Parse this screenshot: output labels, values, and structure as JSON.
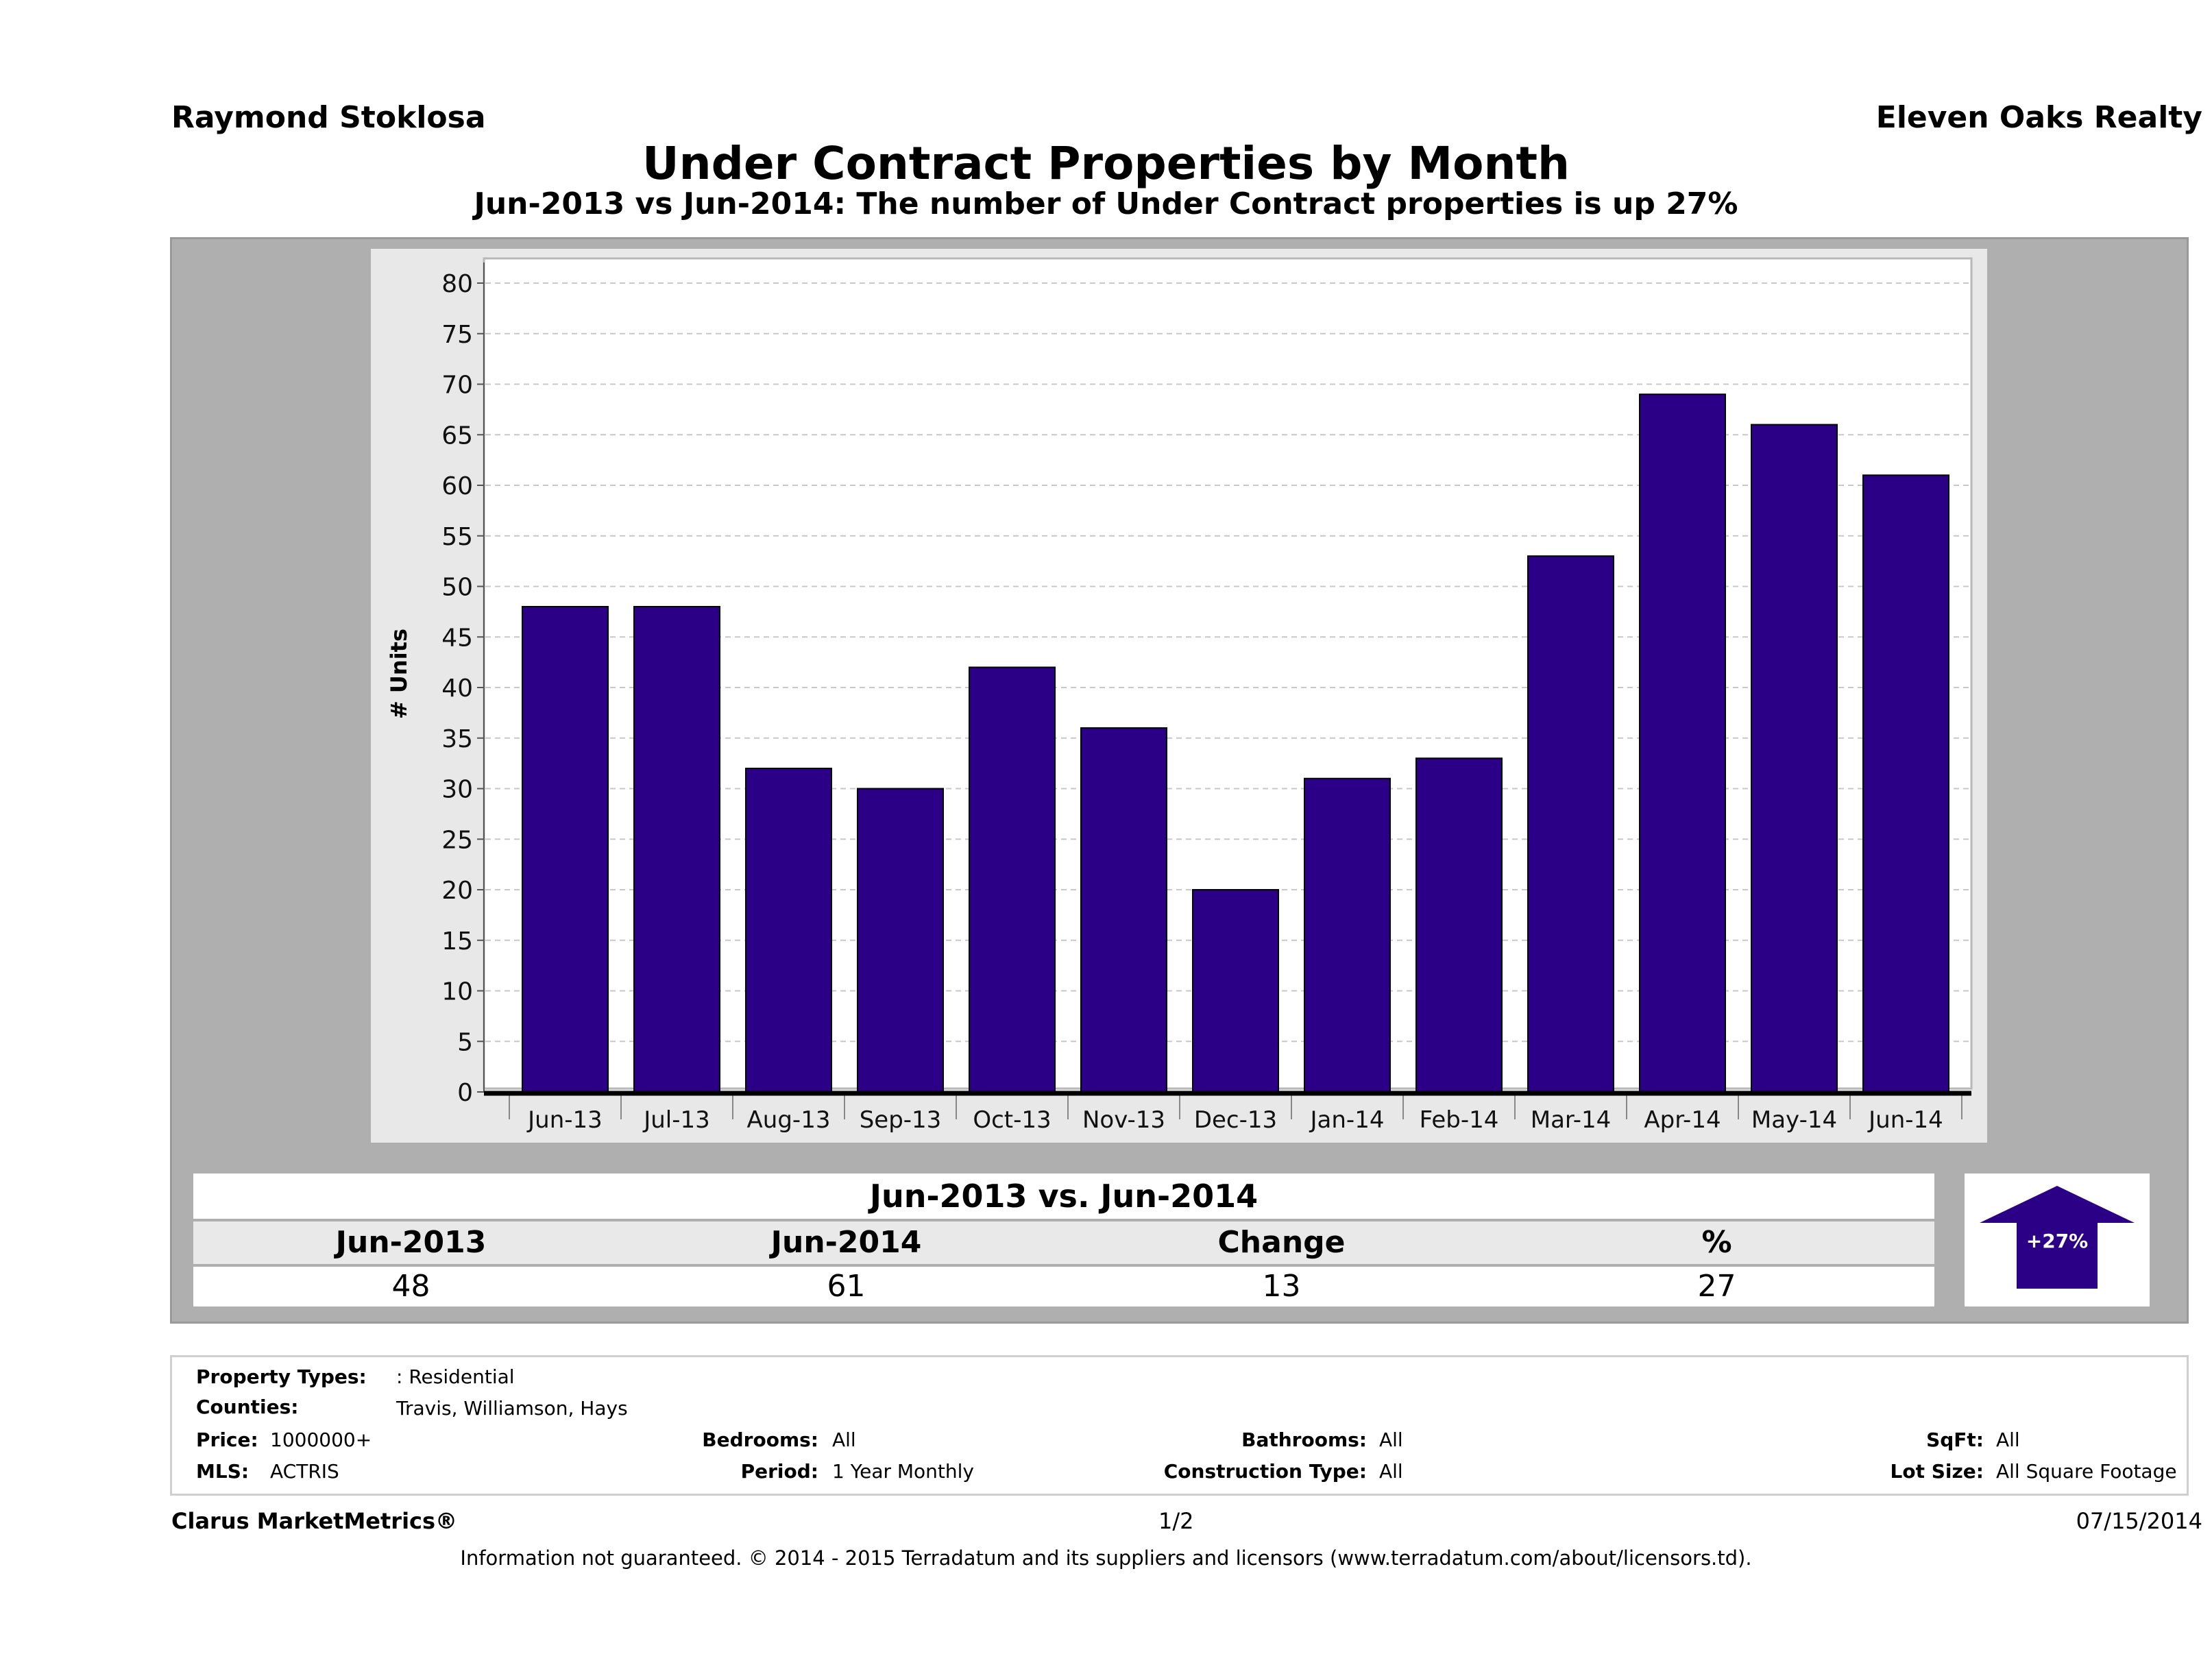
{
  "header": {
    "agent": "Raymond Stoklosa",
    "brokerage": "Eleven Oaks Realty",
    "title": "Under Contract Properties by Month",
    "subtitle": "Jun-2013 vs Jun-2014: The number of Under Contract  properties is up 27%"
  },
  "colors": {
    "bar": "#2b0087",
    "panel": "#afafaf",
    "arrow": "#2b0087"
  },
  "chart_data": {
    "type": "bar",
    "title": "Under Contract Properties by Month",
    "xlabel": "",
    "ylabel": "# Units",
    "ylim": [
      0,
      80
    ],
    "yticks": [
      "0",
      "5",
      "10",
      "15",
      "20",
      "25",
      "30",
      "35",
      "40",
      "45",
      "50",
      "55",
      "60",
      "65",
      "70",
      "75",
      "80"
    ],
    "grid": true,
    "categories": [
      "Jun-13",
      "Jul-13",
      "Aug-13",
      "Sep-13",
      "Oct-13",
      "Nov-13",
      "Dec-13",
      "Jan-14",
      "Feb-14",
      "Mar-14",
      "Apr-14",
      "May-14",
      "Jun-14"
    ],
    "values": [
      48,
      48,
      32,
      30,
      42,
      36,
      20,
      31,
      33,
      53,
      69,
      66,
      61
    ]
  },
  "summary": {
    "title": "Jun-2013 vs. Jun-2014",
    "headers": [
      "Jun-2013",
      "Jun-2014",
      "Change",
      "%"
    ],
    "values": [
      "48",
      "61",
      "13",
      "27"
    ],
    "badge": "+27%",
    "badge_icon": "up-arrow-icon"
  },
  "criteria": {
    "property_types_label": "Property Types:",
    "property_types_value": ": Residential",
    "counties_label": "Counties:",
    "counties_value": "Travis, Williamson, Hays",
    "price_label": "Price:",
    "price_value": "1000000+",
    "mls_label": "MLS:",
    "mls_value": "ACTRIS",
    "bedrooms_label": "Bedrooms:",
    "bedrooms_value": "All",
    "period_label": "Period:",
    "period_value": "1 Year Monthly",
    "bathrooms_label": "Bathrooms:",
    "bathrooms_value": "All",
    "construction_label": "Construction Type:",
    "construction_value": "All",
    "sqft_label": "SqFt:",
    "sqft_value": "All",
    "lot_label": "Lot Size:",
    "lot_value": "All Square Footage"
  },
  "footer": {
    "product": "Clarus MarketMetrics®",
    "page": "1/2",
    "date": "07/15/2014",
    "disclaimer": "Information not guaranteed. © 2014 - 2015 Terradatum and its suppliers and licensors (www.terradatum.com/about/licensors.td)."
  }
}
